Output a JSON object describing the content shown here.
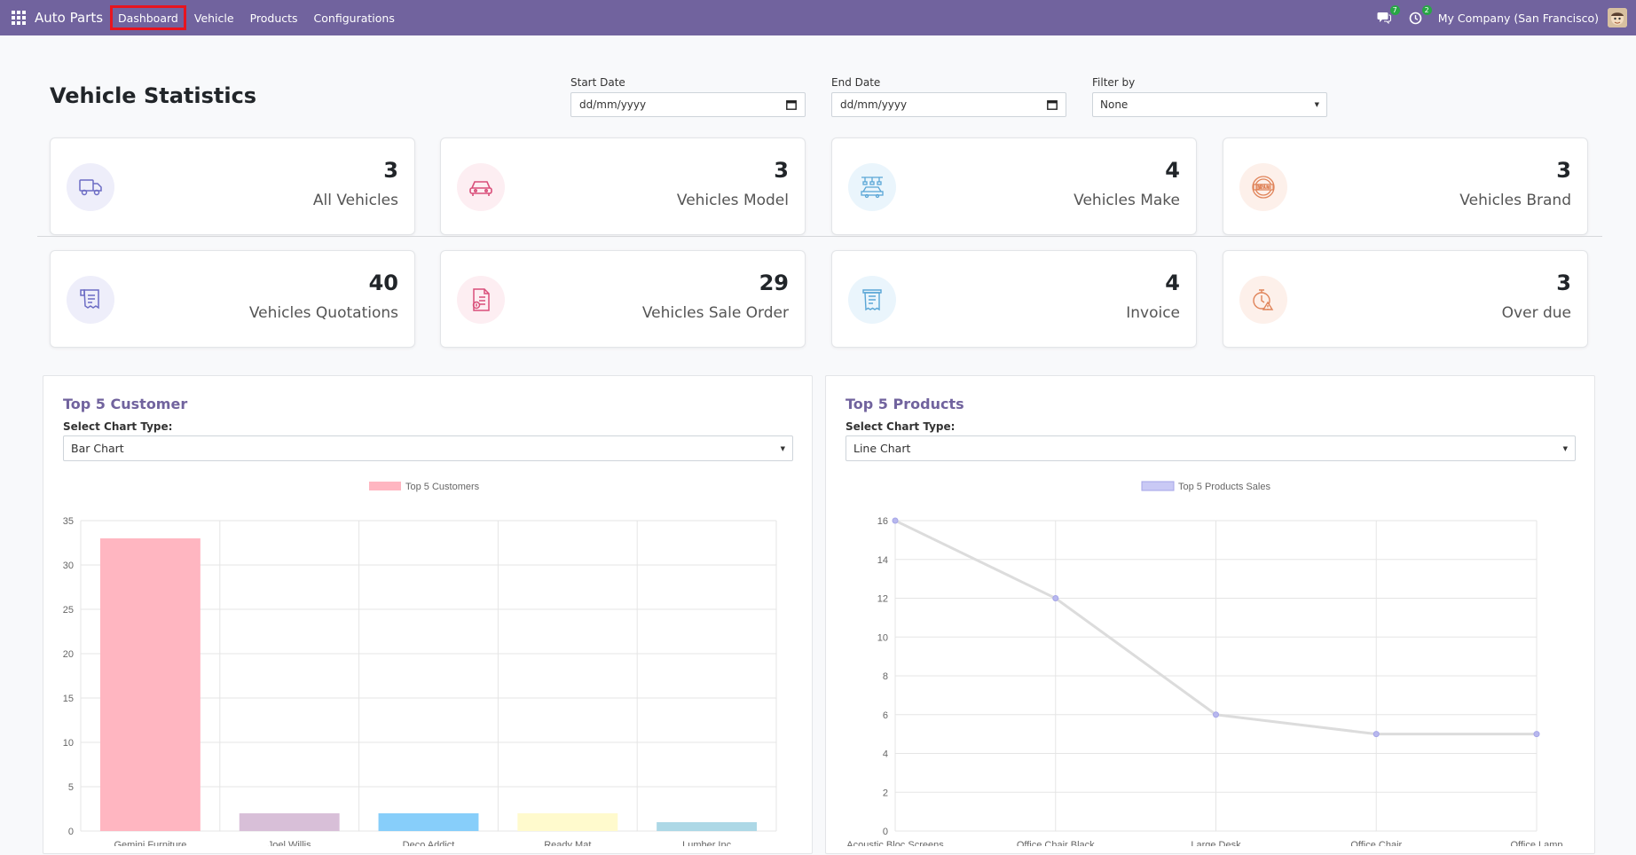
{
  "nav": {
    "brand": "Auto Parts",
    "menu": [
      "Dashboard",
      "Vehicle",
      "Products",
      "Configurations"
    ],
    "messages_badge": "7",
    "activities_badge": "2",
    "company": "My Company (San Francisco)"
  },
  "header": {
    "title": "Vehicle Statistics",
    "start_date_label": "Start Date",
    "start_date_placeholder": "dd/mm/yyyy",
    "end_date_label": "End Date",
    "end_date_placeholder": "dd/mm/yyyy",
    "filter_label": "Filter by",
    "filter_value": "None"
  },
  "cards": [
    {
      "count": "3",
      "label": "All Vehicles",
      "icon": "truck-icon",
      "bg": "#eeeefa",
      "color": "#6c6cc4"
    },
    {
      "count": "3",
      "label": "Vehicles Model",
      "icon": "car-icon",
      "bg": "#fdeef2",
      "color": "#d94f7a"
    },
    {
      "count": "4",
      "label": "Vehicles Make",
      "icon": "assembly-icon",
      "bg": "#eaf5fc",
      "color": "#5aa6d6"
    },
    {
      "count": "3",
      "label": "Vehicles Brand",
      "icon": "brand-icon",
      "bg": "#fdf0ea",
      "color": "#e0845a"
    },
    {
      "count": "40",
      "label": "Vehicles Quotations",
      "icon": "quotation-icon",
      "bg": "#eeeefa",
      "color": "#6c6cc4"
    },
    {
      "count": "29",
      "label": "Vehicles Sale Order",
      "icon": "sale-order-icon",
      "bg": "#fdeef2",
      "color": "#d94f7a"
    },
    {
      "count": "4",
      "label": "Invoice",
      "icon": "invoice-icon",
      "bg": "#eaf5fc",
      "color": "#5aa6d6"
    },
    {
      "count": "3",
      "label": "Over due",
      "icon": "overdue-icon",
      "bg": "#fdf0ea",
      "color": "#e0845a"
    }
  ],
  "customer_panel": {
    "title": "Top 5 Customer",
    "select_label": "Select Chart Type:",
    "select_value": "Bar Chart"
  },
  "products_panel": {
    "title": "Top 5 Products",
    "select_label": "Select Chart Type:",
    "select_value": "Line Chart"
  },
  "chart_data": [
    {
      "type": "bar",
      "legend": "Top 5 Customers",
      "categories": [
        "Gemini Furniture",
        "Joel Willis",
        "Deco Addict",
        "Ready Mat",
        "Lumber Inc"
      ],
      "values": [
        33,
        2,
        2,
        2,
        1
      ],
      "colors": [
        "#ffb6c1",
        "#d8bfd8",
        "#87cefa",
        "#fffacd",
        "#add8e6"
      ],
      "ylim": [
        0,
        35
      ],
      "yticks": [
        0,
        5,
        10,
        15,
        20,
        25,
        30,
        35
      ]
    },
    {
      "type": "line",
      "legend": "Top 5 Products Sales",
      "categories": [
        "Acoustic Bloc Screens",
        "Office Chair Black",
        "Large Desk",
        "Office Chair",
        "Office Lamp"
      ],
      "values": [
        16,
        12,
        6,
        5,
        5
      ],
      "ylim": [
        0,
        16
      ],
      "yticks": [
        0,
        2,
        4,
        6,
        8,
        10,
        12,
        14,
        16
      ]
    }
  ]
}
